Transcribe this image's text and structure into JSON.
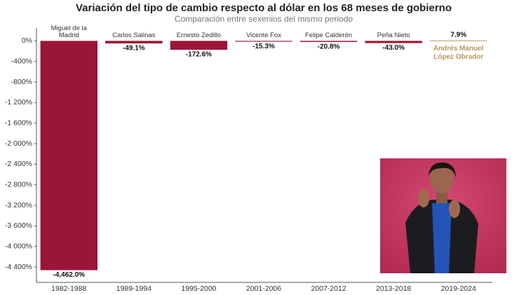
{
  "chart_data": {
    "type": "bar",
    "title": "Variación del tipo de cambio respecto al dólar en los 68 meses de gobierno",
    "subtitle": "Comparación entre sexenios del mismo periodo",
    "categories": [
      "1982-1988",
      "1989-1994",
      "1995-2000",
      "2001-2006",
      "2007-2012",
      "2013-2018",
      "2019-2024"
    ],
    "annotations": [
      "Miguel de la Madrid",
      "Carlos Salinas",
      "Ernesto Zedillo",
      "Vicente Fox",
      "Felipe Calderón",
      "Peña Nieto",
      "Andrés Manuel López Obrador"
    ],
    "values": [
      -4462.0,
      -49.1,
      -172.6,
      -15.3,
      -20.8,
      -43.0,
      7.9
    ],
    "value_labels": [
      "-4,462.0%",
      "-49.1%",
      "-172.6%",
      "-15.3%",
      "-20.8%",
      "-43.0%",
      "7.9%"
    ],
    "colors": [
      "#9b1538",
      "#9b1538",
      "#9b1538",
      "#9b1538",
      "#9b1538",
      "#9b1538",
      "#bc955c"
    ],
    "ylim": [
      -4700,
      250
    ],
    "yticks": [
      {
        "value": 0,
        "label": "0%"
      },
      {
        "value": -400,
        "label": "-400%"
      },
      {
        "value": -800,
        "label": "-800%"
      },
      {
        "value": -1200,
        "label": "-1 200%"
      },
      {
        "value": -1600,
        "label": "-1 600%"
      },
      {
        "value": -2000,
        "label": "-2 000%"
      },
      {
        "value": -2400,
        "label": "-2 400%"
      },
      {
        "value": -2800,
        "label": "-2 800%"
      },
      {
        "value": -3200,
        "label": "-3 200%"
      },
      {
        "value": -3600,
        "label": "-3 600%"
      },
      {
        "value": -4000,
        "label": "-4 000%"
      },
      {
        "value": -4400,
        "label": "-4 400%"
      }
    ],
    "grid": false
  }
}
